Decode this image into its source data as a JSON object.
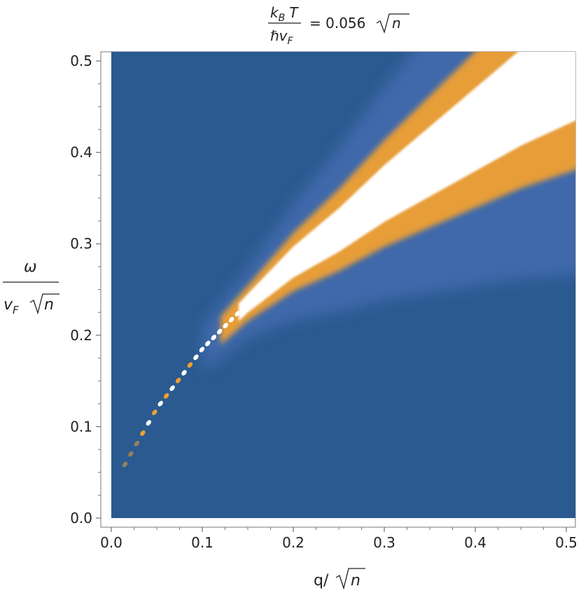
{
  "chart_data": {
    "type": "heatmap",
    "title": {
      "fraction_numerator": "k",
      "numerator_sub": "B",
      "numerator_var": "T",
      "fraction_denominator": "ℏv",
      "denominator_sub": "F",
      "equals_text": "= 0.056",
      "sqrt_arg": "n"
    },
    "xlabel": {
      "prefix": "q/",
      "sqrt_arg": "n"
    },
    "ylabel": {
      "numerator": "ω",
      "denominator_var": "v",
      "denominator_sub": "F",
      "sqrt_arg": "n"
    },
    "xlim": [
      0.0,
      0.51
    ],
    "ylim": [
      0.0,
      0.51
    ],
    "x_ticks": [
      "0.0",
      "0.1",
      "0.2",
      "0.3",
      "0.4",
      "0.5"
    ],
    "y_ticks": [
      "0.0",
      "0.1",
      "0.2",
      "0.3",
      "0.4",
      "0.5"
    ],
    "x_tick_values": [
      0.0,
      0.1,
      0.2,
      0.3,
      0.4,
      0.5
    ],
    "y_tick_values": [
      0.0,
      0.1,
      0.2,
      0.3,
      0.4,
      0.5
    ],
    "colormap": {
      "low": "#2a5a8f",
      "mid_blue": "#4a70b8",
      "orange": "#f0a030",
      "high": "#ffffff"
    },
    "feature": {
      "description_free": true,
      "band_center_points": [
        {
          "x": 0.01,
          "y": 0.05
        },
        {
          "x": 0.05,
          "y": 0.12
        },
        {
          "x": 0.1,
          "y": 0.185
        },
        {
          "x": 0.15,
          "y": 0.235
        },
        {
          "x": 0.2,
          "y": 0.28
        },
        {
          "x": 0.25,
          "y": 0.315
        },
        {
          "x": 0.3,
          "y": 0.355
        },
        {
          "x": 0.35,
          "y": 0.39
        },
        {
          "x": 0.4,
          "y": 0.425
        },
        {
          "x": 0.45,
          "y": 0.46
        },
        {
          "x": 0.5,
          "y": 0.49
        }
      ],
      "band_width_at_x": [
        {
          "x": 0.05,
          "w": 0.004
        },
        {
          "x": 0.15,
          "w": 0.012
        },
        {
          "x": 0.25,
          "w": 0.028
        },
        {
          "x": 0.35,
          "w": 0.045
        },
        {
          "x": 0.45,
          "w": 0.062
        },
        {
          "x": 0.51,
          "w": 0.072
        }
      ]
    },
    "grid": false
  }
}
